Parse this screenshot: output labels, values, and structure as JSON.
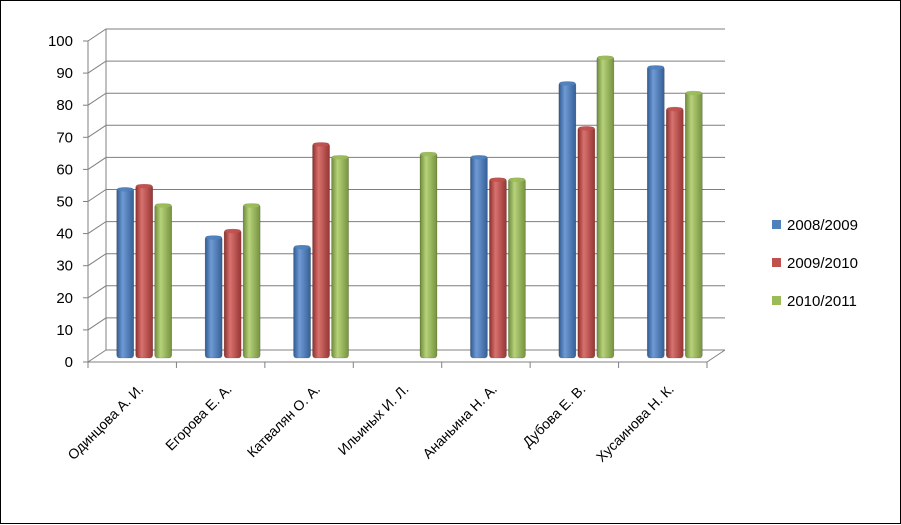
{
  "chart_data": {
    "type": "bar",
    "title": "",
    "xlabel": "",
    "ylabel": "",
    "ylim": [
      0,
      100
    ],
    "yticks": [
      0,
      10,
      20,
      30,
      40,
      50,
      60,
      70,
      80,
      90,
      100
    ],
    "grid": true,
    "legend_position": "right",
    "categories": [
      "Одинцова А. И.",
      "Егорова Е. А.",
      "Катвалян О. А.",
      "Ильиных И. Л.",
      "Ананьина Н. А.",
      "Дубова Е. В.",
      "Хусаинова Н. К."
    ],
    "series": [
      {
        "name": "2008/2009",
        "color": "#4F81BD",
        "values": [
          53,
          38,
          35,
          null,
          63,
          86,
          91
        ]
      },
      {
        "name": "2009/2010",
        "color": "#C0504D",
        "values": [
          54,
          40,
          67,
          null,
          56,
          72,
          78
        ]
      },
      {
        "name": "2010/2011",
        "color": "#9BBB59",
        "values": [
          48,
          48,
          63,
          64,
          56,
          94,
          83
        ]
      }
    ]
  }
}
